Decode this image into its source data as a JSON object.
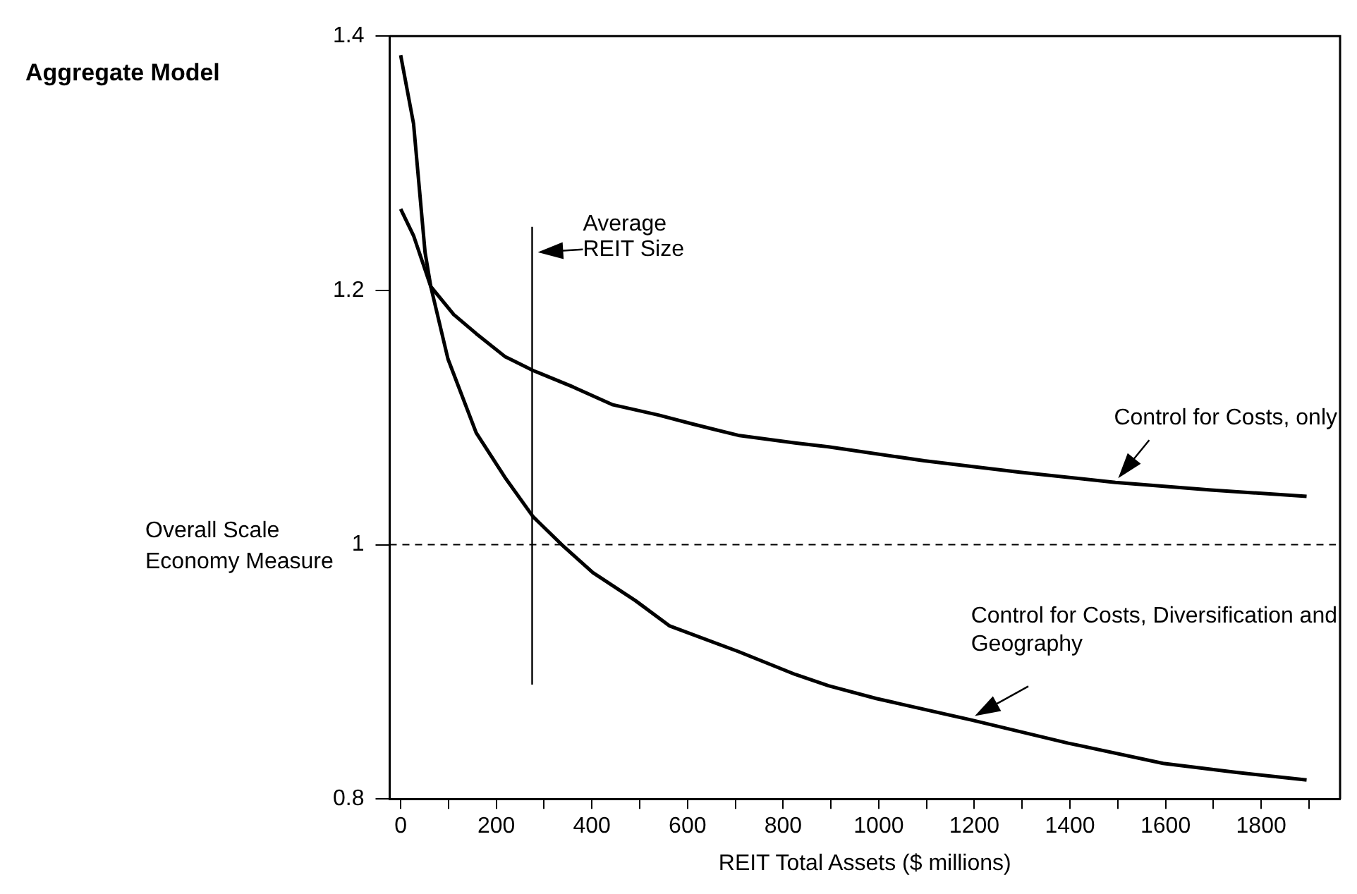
{
  "chart_data": {
    "type": "line",
    "title": "Aggregate Model",
    "xlabel": "REIT Total Assets ($ millions)",
    "ylabel": "Overall Scale Economy Measure",
    "xlim": [
      -23,
      1965
    ],
    "xticks": [
      0,
      {
        "value": 100,
        "label": null
      },
      200,
      {
        "value": 300,
        "label": null
      },
      400,
      {
        "value": 500,
        "label": null
      },
      600,
      {
        "value": 700,
        "label": null
      },
      800,
      {
        "value": 900,
        "label": null
      },
      1000,
      {
        "value": 1100,
        "label": null
      },
      1200,
      {
        "value": 1300,
        "label": null
      },
      1400,
      {
        "value": 1500,
        "label": null
      },
      1600,
      {
        "value": 1700,
        "label": null
      },
      1800,
      {
        "value": 1900,
        "label": null
      }
    ],
    "ylim": [
      0.8,
      1.4
    ],
    "yticks": [
      0.8,
      1,
      1.2,
      1.4
    ],
    "grid": false,
    "legend": false,
    "marker": "none",
    "series": [
      {
        "name": "Control for Costs, only",
        "color": "#000000",
        "x": [
          0,
          27,
          63,
          111,
          158,
          218,
          277,
          361,
          444,
          539,
          610,
          706,
          825,
          895,
          1095,
          1295,
          1495,
          1695,
          1895
        ],
        "values": [
          1.264,
          1.243,
          1.203,
          1.181,
          1.166,
          1.148,
          1.137,
          1.124,
          1.11,
          1.102,
          1.095,
          1.086,
          1.08,
          1.077,
          1.066,
          1.057,
          1.049,
          1.043,
          1.038
        ]
      },
      {
        "name": "Control for Costs, Diversification and Geography",
        "color": "#000000",
        "x": [
          0,
          27,
          51,
          63,
          99,
          158,
          218,
          277,
          337,
          402,
          491,
          563,
          706,
          825,
          895,
          995,
          1195,
          1395,
          1595,
          1745,
          1895
        ],
        "values": [
          1.385,
          1.331,
          1.23,
          1.203,
          1.146,
          1.088,
          1.053,
          1.022,
          1.0,
          0.978,
          0.956,
          0.936,
          0.916,
          0.898,
          0.889,
          0.879,
          0.862,
          0.844,
          0.828,
          0.821,
          0.815
        ]
      }
    ],
    "ref_lines": [
      {
        "axis": "x",
        "value": 275,
        "label": "Average REIT Size",
        "color": "#000000",
        "line_style": "solid"
      },
      {
        "axis": "y",
        "value": 1,
        "color": "#000000",
        "line_style": "dashed"
      }
    ]
  }
}
